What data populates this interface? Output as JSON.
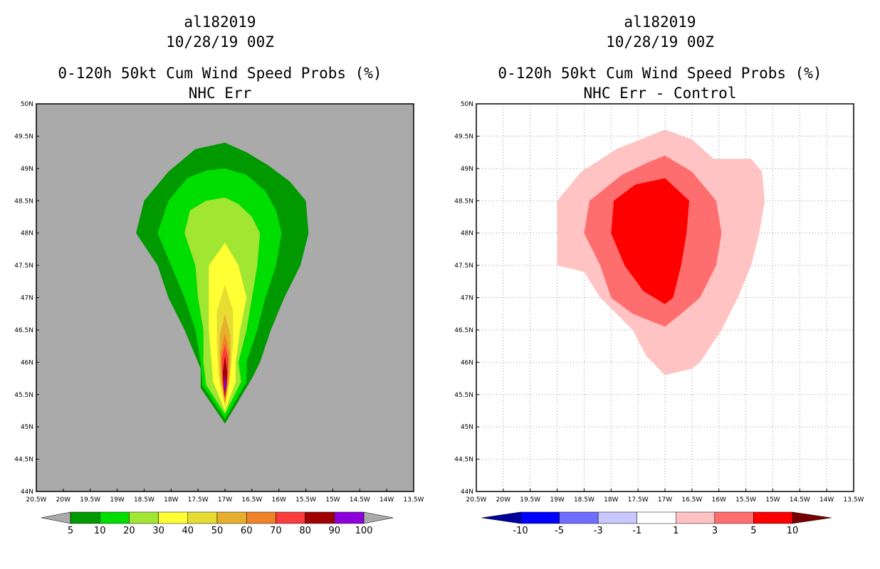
{
  "chart_data": [
    {
      "type": "heatmap",
      "title": [
        "al182019",
        "10/28/19 00Z",
        "0-120h 50kt Cum Wind Speed Probs (%)",
        "NHC Err"
      ],
      "xlabel": "",
      "ylabel": "",
      "xlim": [
        -20.5,
        -13.5
      ],
      "ylim": [
        44,
        50
      ],
      "x_ticks": [
        "20.5W",
        "20W",
        "19.5W",
        "19W",
        "18.5W",
        "18W",
        "17.5W",
        "17W",
        "16.5W",
        "16W",
        "15.5W",
        "15W",
        "14.5W",
        "14W",
        "13.5W"
      ],
      "y_ticks": [
        "44N",
        "44.5N",
        "45N",
        "45.5N",
        "46N",
        "46.5N",
        "47N",
        "47.5N",
        "48N",
        "48.5N",
        "49N",
        "49.5N",
        "50N"
      ],
      "grid": false,
      "background": "#aaaaaa",
      "colorbar": {
        "levels": [
          "5",
          "10",
          "20",
          "30",
          "40",
          "50",
          "60",
          "70",
          "80",
          "90",
          "100"
        ],
        "colors": [
          "#009900",
          "#00dd00",
          "#a0e632",
          "#ffff33",
          "#e6dc32",
          "#e6af2d",
          "#f08228",
          "#fa3c3c",
          "#a00000",
          "#8c00dc"
        ],
        "under": "#aaaaaa",
        "over": "#aaaaaa"
      },
      "contours": [
        {
          "level": 5,
          "color": "#009900",
          "points": [
            [
              -17,
              49.4
            ],
            [
              -16.6,
              49.25
            ],
            [
              -16.2,
              49.05
            ],
            [
              -15.8,
              48.8
            ],
            [
              -15.5,
              48.5
            ],
            [
              -15.45,
              48
            ],
            [
              -15.6,
              47.5
            ],
            [
              -15.9,
              47
            ],
            [
              -16.15,
              46.5
            ],
            [
              -16.35,
              46
            ],
            [
              -16.5,
              45.75
            ],
            [
              -17,
              45.05
            ],
            [
              -17.45,
              45.6
            ],
            [
              -17.45,
              45.9
            ],
            [
              -17.75,
              46.5
            ],
            [
              -18.05,
              47
            ],
            [
              -18.25,
              47.5
            ],
            [
              -18.65,
              48
            ],
            [
              -18.5,
              48.5
            ],
            [
              -18.05,
              48.95
            ],
            [
              -17.55,
              49.3
            ]
          ]
        },
        {
          "level": 10,
          "color": "#00dd00",
          "points": [
            [
              -17,
              49.0
            ],
            [
              -16.6,
              48.9
            ],
            [
              -16.25,
              48.65
            ],
            [
              -16.05,
              48.35
            ],
            [
              -15.95,
              48
            ],
            [
              -16.05,
              47.5
            ],
            [
              -16.25,
              47
            ],
            [
              -16.4,
              46.5
            ],
            [
              -16.6,
              46
            ],
            [
              -16.6,
              45.7
            ],
            [
              -17,
              45.12
            ],
            [
              -17.42,
              45.65
            ],
            [
              -17.45,
              46
            ],
            [
              -17.55,
              46.5
            ],
            [
              -17.75,
              47
            ],
            [
              -18.0,
              47.5
            ],
            [
              -18.25,
              48
            ],
            [
              -18.05,
              48.5
            ],
            [
              -17.7,
              48.85
            ],
            [
              -17.35,
              48.97
            ]
          ]
        },
        {
          "level": 20,
          "color": "#a0e632",
          "points": [
            [
              -17,
              48.55
            ],
            [
              -16.75,
              48.45
            ],
            [
              -16.5,
              48.25
            ],
            [
              -16.35,
              48
            ],
            [
              -16.4,
              47.5
            ],
            [
              -16.5,
              47
            ],
            [
              -16.6,
              46.5
            ],
            [
              -16.75,
              46
            ],
            [
              -16.7,
              45.7
            ],
            [
              -17,
              45.2
            ],
            [
              -17.35,
              45.65
            ],
            [
              -17.4,
              46
            ],
            [
              -17.4,
              46.5
            ],
            [
              -17.5,
              47
            ],
            [
              -17.55,
              47.5
            ],
            [
              -17.75,
              48
            ],
            [
              -17.65,
              48.35
            ],
            [
              -17.35,
              48.5
            ]
          ]
        },
        {
          "level": 30,
          "color": "#ffff33",
          "points": [
            [
              -17,
              47.85
            ],
            [
              -16.75,
              47.5
            ],
            [
              -16.6,
              47
            ],
            [
              -16.72,
              46.5
            ],
            [
              -16.8,
              46
            ],
            [
              -16.8,
              45.7
            ],
            [
              -17,
              45.25
            ],
            [
              -17.22,
              45.7
            ],
            [
              -17.25,
              46
            ],
            [
              -17.3,
              46.5
            ],
            [
              -17.3,
              47
            ],
            [
              -17.3,
              47.5
            ]
          ]
        },
        {
          "level": 40,
          "color": "#e6dc32",
          "points": [
            [
              -17,
              47.2
            ],
            [
              -16.85,
              46.8
            ],
            [
              -16.85,
              46.3
            ],
            [
              -16.9,
              45.8
            ],
            [
              -17,
              45.3
            ],
            [
              -17.12,
              45.8
            ],
            [
              -17.15,
              46.3
            ],
            [
              -17.15,
              46.8
            ]
          ]
        },
        {
          "level": 50,
          "color": "#e6af2d",
          "points": [
            [
              -17,
              46.75
            ],
            [
              -16.9,
              46.4
            ],
            [
              -16.9,
              46
            ],
            [
              -16.92,
              45.7
            ],
            [
              -17,
              45.35
            ],
            [
              -17.08,
              45.7
            ],
            [
              -17.1,
              46
            ],
            [
              -17.1,
              46.4
            ]
          ]
        },
        {
          "level": 60,
          "color": "#f08228",
          "points": [
            [
              -17,
              46.45
            ],
            [
              -16.92,
              46.15
            ],
            [
              -16.93,
              45.8
            ],
            [
              -17,
              45.38
            ],
            [
              -17.07,
              45.8
            ],
            [
              -17.08,
              46.15
            ]
          ]
        },
        {
          "level": 70,
          "color": "#fa3c3c",
          "points": [
            [
              -17,
              46.28
            ],
            [
              -16.94,
              46.05
            ],
            [
              -16.95,
              45.75
            ],
            [
              -17,
              45.42
            ],
            [
              -17.05,
              45.75
            ],
            [
              -17.06,
              46.05
            ]
          ]
        },
        {
          "level": 80,
          "color": "#a00000",
          "points": [
            [
              -17,
              46.1
            ],
            [
              -16.96,
              45.85
            ],
            [
              -16.97,
              45.65
            ],
            [
              -17,
              45.46
            ],
            [
              -17.03,
              45.65
            ],
            [
              -17.04,
              45.85
            ]
          ]
        },
        {
          "level": 90,
          "color": "#8c00dc",
          "points": [
            [
              -17,
              45.82
            ],
            [
              -16.98,
              45.65
            ],
            [
              -17,
              45.52
            ],
            [
              -17.02,
              45.65
            ]
          ]
        }
      ]
    },
    {
      "type": "heatmap",
      "title": [
        "al182019",
        "10/28/19 00Z",
        "0-120h 50kt Cum Wind Speed Probs (%)",
        "NHC Err - Control"
      ],
      "xlabel": "",
      "ylabel": "",
      "xlim": [
        -20.5,
        -13.5
      ],
      "ylim": [
        44,
        50
      ],
      "x_ticks": [
        "20.5W",
        "20W",
        "19.5W",
        "19W",
        "18.5W",
        "18W",
        "17.5W",
        "17W",
        "16.5W",
        "16W",
        "15.5W",
        "15W",
        "14.5W",
        "14W",
        "13.5W"
      ],
      "y_ticks": [
        "44N",
        "44.5N",
        "45N",
        "45.5N",
        "46N",
        "46.5N",
        "47N",
        "47.5N",
        "48N",
        "48.5N",
        "49N",
        "49.5N",
        "50N"
      ],
      "grid": true,
      "background": "#ffffff",
      "colorbar": {
        "levels": [
          "-10",
          "-5",
          "-3",
          "-1",
          "1",
          "3",
          "5",
          "10"
        ],
        "colors": [
          "#0000ff",
          "#6e6eff",
          "#c8c8ff",
          "#ffffff",
          "#ffc3c3",
          "#ff6e6e",
          "#ff0000"
        ],
        "under": "#00009c",
        "over": "#780000"
      },
      "contours": [
        {
          "level": 1,
          "color": "#ffc3c3",
          "points": [
            [
              -17,
              49.6
            ],
            [
              -16.5,
              49.45
            ],
            [
              -16.1,
              49.15
            ],
            [
              -15.4,
              49.15
            ],
            [
              -15.2,
              48.95
            ],
            [
              -15.15,
              48.5
            ],
            [
              -15.25,
              48
            ],
            [
              -15.4,
              47.5
            ],
            [
              -15.65,
              47
            ],
            [
              -15.95,
              46.5
            ],
            [
              -16.35,
              46
            ],
            [
              -16.5,
              45.9
            ],
            [
              -17,
              45.8
            ],
            [
              -17.35,
              46.1
            ],
            [
              -17.6,
              46.5
            ],
            [
              -18.2,
              47
            ],
            [
              -18.5,
              47.4
            ],
            [
              -19.0,
              47.5
            ],
            [
              -19.0,
              48.5
            ],
            [
              -18.55,
              48.95
            ],
            [
              -17.9,
              49.3
            ],
            [
              -17.3,
              49.5
            ]
          ]
        },
        {
          "level": 3,
          "color": "#ff6e6e",
          "points": [
            [
              -17,
              49.2
            ],
            [
              -16.5,
              48.95
            ],
            [
              -16.05,
              48.5
            ],
            [
              -15.95,
              48
            ],
            [
              -16.05,
              47.5
            ],
            [
              -16.35,
              47
            ],
            [
              -16.7,
              46.75
            ],
            [
              -17,
              46.55
            ],
            [
              -17.6,
              46.75
            ],
            [
              -18.0,
              47
            ],
            [
              -18.2,
              47.5
            ],
            [
              -18.5,
              48
            ],
            [
              -18.4,
              48.5
            ],
            [
              -17.8,
              48.9
            ],
            [
              -17.3,
              49.1
            ]
          ]
        },
        {
          "level": 5,
          "color": "#ff0000",
          "points": [
            [
              -17,
              48.85
            ],
            [
              -16.55,
              48.5
            ],
            [
              -16.6,
              48
            ],
            [
              -16.7,
              47.5
            ],
            [
              -16.85,
              47
            ],
            [
              -17,
              46.9
            ],
            [
              -17.4,
              47.1
            ],
            [
              -17.75,
              47.5
            ],
            [
              -18.0,
              48
            ],
            [
              -17.95,
              48.5
            ],
            [
              -17.55,
              48.75
            ]
          ]
        }
      ]
    }
  ]
}
